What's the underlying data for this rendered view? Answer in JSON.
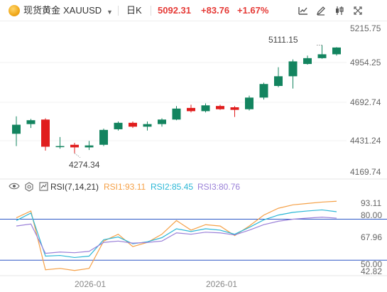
{
  "header": {
    "instrument_name": "现货黄金",
    "symbol": "XAUUSD",
    "period": "日K",
    "last_price": "5092.31",
    "change": "+83.76",
    "change_pct": "+1.67%"
  },
  "icons": [
    "gold-coin-icon",
    "chevron-down-icon",
    "calendar-icon",
    "line-chart-icon",
    "pen-icon",
    "candlestick-icon",
    "fullscreen-icon",
    "eye-icon",
    "gear-icon",
    "indicator-icon"
  ],
  "colors": {
    "up": "#13845f",
    "down": "#e01d1d",
    "rsi1": "#f5a046",
    "rsi2": "#2bb7d6",
    "rsi3": "#9a80d8",
    "ref_line": "#2c57c6",
    "price_text": "#e53935"
  },
  "chart_data": [
    {
      "type": "candlestick",
      "title": "",
      "yticks": [
        "5215.75",
        "4954.25",
        "4692.74",
        "4431.24",
        "4169.74"
      ],
      "ylim": [
        4130,
        5240
      ],
      "xticks": [
        "2026-01",
        "2026-01"
      ],
      "annotations": {
        "high": "5111.15",
        "low": "4274.34"
      },
      "candles": [
        {
          "o": 4425,
          "h": 4560,
          "l": 4330,
          "c": 4495
        },
        {
          "o": 4500,
          "h": 4540,
          "l": 4470,
          "c": 4530
        },
        {
          "o": 4535,
          "h": 4545,
          "l": 4295,
          "c": 4325
        },
        {
          "o": 4325,
          "h": 4400,
          "l": 4310,
          "c": 4330
        },
        {
          "o": 4340,
          "h": 4355,
          "l": 4274.34,
          "c": 4320
        },
        {
          "o": 4320,
          "h": 4370,
          "l": 4300,
          "c": 4335
        },
        {
          "o": 4340,
          "h": 4465,
          "l": 4330,
          "c": 4455
        },
        {
          "o": 4460,
          "h": 4520,
          "l": 4450,
          "c": 4510
        },
        {
          "o": 4510,
          "h": 4520,
          "l": 4470,
          "c": 4480
        },
        {
          "o": 4480,
          "h": 4520,
          "l": 4450,
          "c": 4500
        },
        {
          "o": 4500,
          "h": 4545,
          "l": 4480,
          "c": 4535
        },
        {
          "o": 4535,
          "h": 4640,
          "l": 4530,
          "c": 4620
        },
        {
          "o": 4625,
          "h": 4650,
          "l": 4590,
          "c": 4600
        },
        {
          "o": 4600,
          "h": 4660,
          "l": 4590,
          "c": 4645
        },
        {
          "o": 4640,
          "h": 4650,
          "l": 4610,
          "c": 4615
        },
        {
          "o": 4630,
          "h": 4640,
          "l": 4555,
          "c": 4610
        },
        {
          "o": 4615,
          "h": 4720,
          "l": 4605,
          "c": 4705
        },
        {
          "o": 4705,
          "h": 4820,
          "l": 4690,
          "c": 4810
        },
        {
          "o": 4795,
          "h": 4940,
          "l": 4785,
          "c": 4870
        },
        {
          "o": 4870,
          "h": 5000,
          "l": 4775,
          "c": 4985
        },
        {
          "o": 4965,
          "h": 5030,
          "l": 4960,
          "c": 5010
        },
        {
          "o": 5010,
          "h": 5111.15,
          "l": 5005,
          "c": 5040
        },
        {
          "o": 5040,
          "h": 5095,
          "l": 5030,
          "c": 5092.31
        }
      ]
    },
    {
      "type": "line",
      "title": "RSI(7,14,21)",
      "yticks": [
        "93.11",
        "80.00",
        "67.96",
        "50.00",
        "42.82"
      ],
      "ylim": [
        40.8,
        100
      ],
      "ref_lines": [
        80,
        50
      ],
      "series": [
        {
          "name": "RSI1:93.11",
          "values": [
            81.0,
            86.0,
            43.0,
            44.0,
            42.5,
            44.0,
            64.0,
            69.0,
            60.0,
            63.0,
            69.0,
            79.0,
            72.0,
            76.0,
            75.0,
            68.0,
            75.0,
            83.0,
            88.0,
            90.5,
            91.5,
            92.5,
            93.11
          ]
        },
        {
          "name": "RSI2:85.45",
          "values": [
            79.0,
            84.5,
            53.0,
            53.5,
            52.0,
            53.0,
            65.0,
            67.0,
            62.0,
            63.5,
            66.5,
            73.0,
            71.0,
            73.0,
            72.0,
            69.0,
            74.0,
            79.5,
            83.0,
            85.0,
            86.0,
            86.8,
            85.45
          ]
        },
        {
          "name": "RSI3:80.76",
          "values": [
            75.0,
            76.5,
            55.0,
            56.0,
            55.5,
            56.5,
            63.0,
            64.0,
            62.5,
            63.0,
            64.0,
            70.0,
            69.0,
            70.5,
            70.0,
            68.5,
            72.0,
            76.0,
            78.5,
            80.0,
            80.8,
            81.5,
            80.76
          ]
        }
      ]
    }
  ]
}
